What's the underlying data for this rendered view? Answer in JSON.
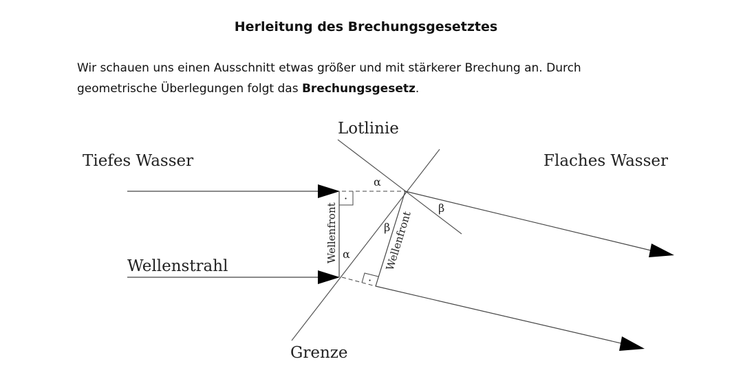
{
  "header": {
    "title": "Herleitung des Brechungsgesetztes"
  },
  "intro": {
    "line1": "Wir schauen uns einen Ausschnitt etwas größer und mit stärkerer Brechung an. Durch",
    "line2_prefix": "geometrische Überlegungen folgt das ",
    "line2_bold": "Brechungsgesetz",
    "line2_suffix": "."
  },
  "diagram": {
    "label_lotlinie": "Lotlinie",
    "label_tiefes_wasser": "Tiefes Wasser",
    "label_flaches_wasser": "Flaches Wasser",
    "label_wellenstrahl": "Wellenstrahl",
    "label_grenze": "Grenze",
    "label_wellenfront_left": "Wellenfront",
    "label_wellenfront_right": "Wellenfront",
    "angle_alpha": "α",
    "angle_beta": "β",
    "right_angle_dot": "·",
    "line_color": "#444444",
    "arrow_color": "#000000"
  }
}
